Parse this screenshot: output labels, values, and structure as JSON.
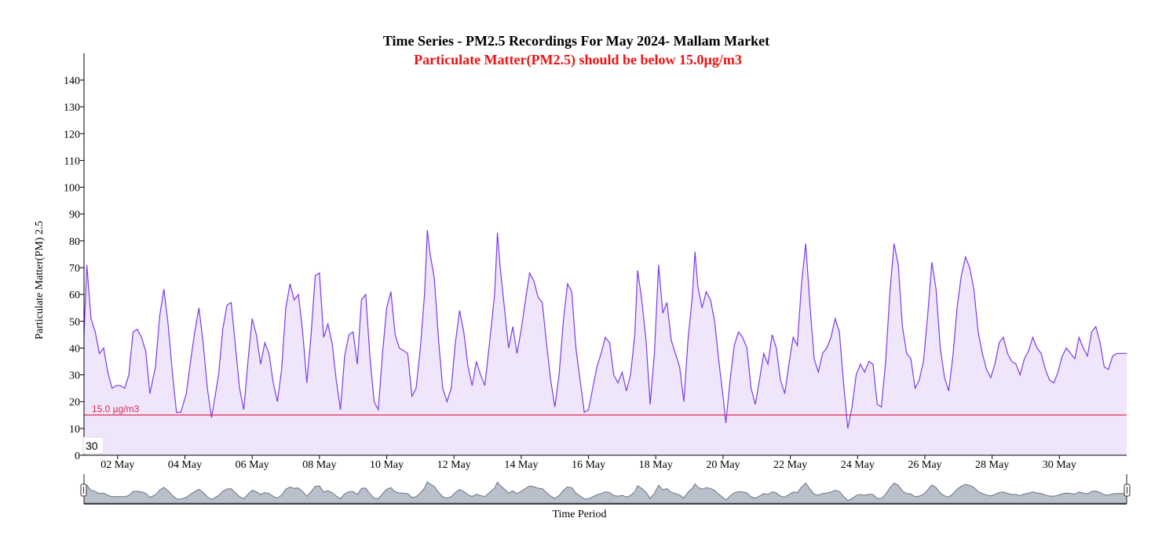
{
  "chart_data": {
    "type": "area",
    "title": "Time Series - PM2.5 Recordings For May 2024- Mallam Market",
    "subtitle": "Particulate Matter(PM2.5) should be below 15.0µg/m3",
    "xlabel": "Time Period",
    "ylabel": "Particulate Matter(PM) 2.5",
    "ylim": [
      0,
      150
    ],
    "xlim": [
      "2024-05-01",
      "2024-06-01"
    ],
    "yticks": [
      "0",
      "10",
      "20",
      "30",
      "40",
      "50",
      "60",
      "70",
      "80",
      "90",
      "100",
      "110",
      "120",
      "130",
      "140"
    ],
    "xticks": [
      {
        "date": "2024-05-02",
        "label": "02 May"
      },
      {
        "date": "2024-05-04",
        "label": "04 May"
      },
      {
        "date": "2024-05-06",
        "label": "06 May"
      },
      {
        "date": "2024-05-08",
        "label": "08 May"
      },
      {
        "date": "2024-05-10",
        "label": "10 May"
      },
      {
        "date": "2024-05-12",
        "label": "12 May"
      },
      {
        "date": "2024-05-14",
        "label": "14 May"
      },
      {
        "date": "2024-05-16",
        "label": "16 May"
      },
      {
        "date": "2024-05-18",
        "label": "18 May"
      },
      {
        "date": "2024-05-20",
        "label": "20 May"
      },
      {
        "date": "2024-05-22",
        "label": "22 May"
      },
      {
        "date": "2024-05-24",
        "label": "24 May"
      },
      {
        "date": "2024-05-26",
        "label": "26 May"
      },
      {
        "date": "2024-05-28",
        "label": "28 May"
      },
      {
        "date": "2024-05-30",
        "label": "30 May"
      }
    ],
    "threshold": {
      "value": 15.0,
      "label": "15.0 µg/m3",
      "color": "#e0284f"
    },
    "series": [
      {
        "color": "#7c3aed",
        "fill": "#efe6fb",
        "points": [
          [
            "2024-05-01 00:00",
            45
          ],
          [
            "2024-05-01 02:00",
            71
          ],
          [
            "2024-05-01 05:00",
            51
          ],
          [
            "2024-05-01 08:00",
            46
          ],
          [
            "2024-05-01 11:00",
            38
          ],
          [
            "2024-05-01 14:00",
            40
          ],
          [
            "2024-05-01 17:00",
            31
          ],
          [
            "2024-05-01 20:00",
            25
          ],
          [
            "2024-05-01 23:00",
            26
          ],
          [
            "2024-05-02 02:00",
            26
          ],
          [
            "2024-05-02 05:00",
            25
          ],
          [
            "2024-05-02 08:00",
            30
          ],
          [
            "2024-05-02 11:00",
            46
          ],
          [
            "2024-05-02 14:00",
            47
          ],
          [
            "2024-05-02 17:00",
            44
          ],
          [
            "2024-05-02 20:00",
            39
          ],
          [
            "2024-05-02 23:00",
            23
          ],
          [
            "2024-05-03 03:00",
            33
          ],
          [
            "2024-05-03 06:00",
            52
          ],
          [
            "2024-05-03 09:00",
            62
          ],
          [
            "2024-05-03 12:00",
            49
          ],
          [
            "2024-05-03 15:00",
            31
          ],
          [
            "2024-05-03 18:00",
            16
          ],
          [
            "2024-05-03 21:00",
            16
          ],
          [
            "2024-05-04 01:00",
            23
          ],
          [
            "2024-05-04 04:00",
            35
          ],
          [
            "2024-05-04 07:00",
            46
          ],
          [
            "2024-05-04 10:00",
            55
          ],
          [
            "2024-05-04 13:00",
            42
          ],
          [
            "2024-05-04 16:00",
            25
          ],
          [
            "2024-05-04 19:00",
            14
          ],
          [
            "2024-05-05 00:00",
            30
          ],
          [
            "2024-05-05 03:00",
            47
          ],
          [
            "2024-05-05 06:00",
            56
          ],
          [
            "2024-05-05 09:00",
            57
          ],
          [
            "2024-05-05 12:00",
            41
          ],
          [
            "2024-05-05 15:00",
            25
          ],
          [
            "2024-05-05 18:00",
            17
          ],
          [
            "2024-05-05 21:00",
            35
          ],
          [
            "2024-05-06 00:00",
            51
          ],
          [
            "2024-05-06 03:00",
            45
          ],
          [
            "2024-05-06 06:00",
            34
          ],
          [
            "2024-05-06 09:00",
            42
          ],
          [
            "2024-05-06 12:00",
            38
          ],
          [
            "2024-05-06 15:00",
            27
          ],
          [
            "2024-05-06 18:00",
            20
          ],
          [
            "2024-05-06 21:00",
            32
          ],
          [
            "2024-05-07 00:00",
            55
          ],
          [
            "2024-05-07 03:00",
            64
          ],
          [
            "2024-05-07 06:00",
            58
          ],
          [
            "2024-05-07 09:00",
            60
          ],
          [
            "2024-05-07 12:00",
            46
          ],
          [
            "2024-05-07 15:00",
            27
          ],
          [
            "2024-05-07 18:00",
            45
          ],
          [
            "2024-05-07 21:00",
            67
          ],
          [
            "2024-05-08 00:00",
            68
          ],
          [
            "2024-05-08 03:00",
            44
          ],
          [
            "2024-05-08 06:00",
            49
          ],
          [
            "2024-05-08 09:00",
            42
          ],
          [
            "2024-05-08 12:00",
            28
          ],
          [
            "2024-05-08 15:00",
            17
          ],
          [
            "2024-05-08 18:00",
            37
          ],
          [
            "2024-05-08 21:00",
            45
          ],
          [
            "2024-05-09 00:00",
            46
          ],
          [
            "2024-05-09 03:00",
            34
          ],
          [
            "2024-05-09 06:00",
            58
          ],
          [
            "2024-05-09 09:00",
            60
          ],
          [
            "2024-05-09 12:00",
            37
          ],
          [
            "2024-05-09 15:00",
            20
          ],
          [
            "2024-05-09 18:00",
            17
          ],
          [
            "2024-05-09 21:00",
            38
          ],
          [
            "2024-05-10 00:00",
            55
          ],
          [
            "2024-05-10 03:00",
            61
          ],
          [
            "2024-05-10 06:00",
            45
          ],
          [
            "2024-05-10 09:00",
            40
          ],
          [
            "2024-05-10 12:00",
            39
          ],
          [
            "2024-05-10 15:00",
            38
          ],
          [
            "2024-05-10 18:00",
            22
          ],
          [
            "2024-05-10 21:00",
            25
          ],
          [
            "2024-05-11 00:00",
            40
          ],
          [
            "2024-05-11 03:00",
            60
          ],
          [
            "2024-05-11 05:00",
            84
          ],
          [
            "2024-05-11 07:00",
            75
          ],
          [
            "2024-05-11 10:00",
            66
          ],
          [
            "2024-05-11 13:00",
            43
          ],
          [
            "2024-05-11 16:00",
            25
          ],
          [
            "2024-05-11 19:00",
            20
          ],
          [
            "2024-05-11 22:00",
            25
          ],
          [
            "2024-05-12 01:00",
            42
          ],
          [
            "2024-05-12 04:00",
            54
          ],
          [
            "2024-05-12 07:00",
            46
          ],
          [
            "2024-05-12 10:00",
            33
          ],
          [
            "2024-05-12 13:00",
            26
          ],
          [
            "2024-05-12 16:00",
            35
          ],
          [
            "2024-05-12 19:00",
            30
          ],
          [
            "2024-05-12 22:00",
            26
          ],
          [
            "2024-05-13 01:00",
            40
          ],
          [
            "2024-05-13 05:00",
            60
          ],
          [
            "2024-05-13 07:00",
            83
          ],
          [
            "2024-05-13 09:00",
            70
          ],
          [
            "2024-05-13 12:00",
            55
          ],
          [
            "2024-05-13 15:00",
            40
          ],
          [
            "2024-05-13 18:00",
            48
          ],
          [
            "2024-05-13 21:00",
            38
          ],
          [
            "2024-05-14 00:00",
            47
          ],
          [
            "2024-05-14 03:00",
            58
          ],
          [
            "2024-05-14 06:00",
            68
          ],
          [
            "2024-05-14 09:00",
            65
          ],
          [
            "2024-05-14 12:00",
            59
          ],
          [
            "2024-05-14 15:00",
            57
          ],
          [
            "2024-05-14 18:00",
            42
          ],
          [
            "2024-05-14 21:00",
            28
          ],
          [
            "2024-05-15 00:00",
            18
          ],
          [
            "2024-05-15 03:00",
            30
          ],
          [
            "2024-05-15 06:00",
            50
          ],
          [
            "2024-05-15 09:00",
            64
          ],
          [
            "2024-05-15 12:00",
            61
          ],
          [
            "2024-05-15 15:00",
            40
          ],
          [
            "2024-05-15 18:00",
            28
          ],
          [
            "2024-05-15 21:00",
            16
          ],
          [
            "2024-05-16 00:00",
            17
          ],
          [
            "2024-05-16 03:00",
            25
          ],
          [
            "2024-05-16 06:00",
            33
          ],
          [
            "2024-05-16 09:00",
            38
          ],
          [
            "2024-05-16 12:00",
            44
          ],
          [
            "2024-05-16 15:00",
            42
          ],
          [
            "2024-05-16 18:00",
            30
          ],
          [
            "2024-05-16 21:00",
            27
          ],
          [
            "2024-05-17 00:00",
            31
          ],
          [
            "2024-05-17 03:00",
            24
          ],
          [
            "2024-05-17 06:00",
            30
          ],
          [
            "2024-05-17 09:00",
            45
          ],
          [
            "2024-05-17 11:00",
            69
          ],
          [
            "2024-05-17 14:00",
            58
          ],
          [
            "2024-05-17 17:00",
            43
          ],
          [
            "2024-05-17 20:00",
            19
          ],
          [
            "2024-05-17 23:00",
            38
          ],
          [
            "2024-05-18 02:00",
            71
          ],
          [
            "2024-05-18 05:00",
            53
          ],
          [
            "2024-05-18 08:00",
            57
          ],
          [
            "2024-05-18 11:00",
            43
          ],
          [
            "2024-05-18 14:00",
            38
          ],
          [
            "2024-05-18 17:00",
            33
          ],
          [
            "2024-05-18 20:00",
            20
          ],
          [
            "2024-05-18 23:00",
            43
          ],
          [
            "2024-05-19 02:00",
            59
          ],
          [
            "2024-05-19 04:00",
            76
          ],
          [
            "2024-05-19 06:00",
            63
          ],
          [
            "2024-05-19 09:00",
            55
          ],
          [
            "2024-05-19 12:00",
            61
          ],
          [
            "2024-05-19 15:00",
            58
          ],
          [
            "2024-05-19 18:00",
            50
          ],
          [
            "2024-05-19 21:00",
            35
          ],
          [
            "2024-05-20 00:00",
            22
          ],
          [
            "2024-05-20 02:00",
            12
          ],
          [
            "2024-05-20 05:00",
            28
          ],
          [
            "2024-05-20 08:00",
            41
          ],
          [
            "2024-05-20 11:00",
            46
          ],
          [
            "2024-05-20 14:00",
            44
          ],
          [
            "2024-05-20 17:00",
            40
          ],
          [
            "2024-05-20 20:00",
            25
          ],
          [
            "2024-05-20 23:00",
            19
          ],
          [
            "2024-05-21 02:00",
            28
          ],
          [
            "2024-05-21 05:00",
            38
          ],
          [
            "2024-05-21 08:00",
            34
          ],
          [
            "2024-05-21 11:00",
            45
          ],
          [
            "2024-05-21 14:00",
            40
          ],
          [
            "2024-05-21 17:00",
            28
          ],
          [
            "2024-05-21 20:00",
            23
          ],
          [
            "2024-05-21 23:00",
            34
          ],
          [
            "2024-05-22 02:00",
            44
          ],
          [
            "2024-05-22 05:00",
            41
          ],
          [
            "2024-05-22 08:00",
            64
          ],
          [
            "2024-05-22 11:00",
            79
          ],
          [
            "2024-05-22 14:00",
            56
          ],
          [
            "2024-05-22 17:00",
            36
          ],
          [
            "2024-05-22 20:00",
            31
          ],
          [
            "2024-05-22 23:00",
            38
          ],
          [
            "2024-05-23 02:00",
            40
          ],
          [
            "2024-05-23 05:00",
            44
          ],
          [
            "2024-05-23 08:00",
            51
          ],
          [
            "2024-05-23 11:00",
            46
          ],
          [
            "2024-05-23 14:00",
            27
          ],
          [
            "2024-05-23 17:00",
            10
          ],
          [
            "2024-05-23 20:00",
            18
          ],
          [
            "2024-05-23 23:00",
            30
          ],
          [
            "2024-05-24 02:00",
            34
          ],
          [
            "2024-05-24 05:00",
            31
          ],
          [
            "2024-05-24 08:00",
            35
          ],
          [
            "2024-05-24 11:00",
            34
          ],
          [
            "2024-05-24 14:00",
            19
          ],
          [
            "2024-05-24 17:00",
            18
          ],
          [
            "2024-05-24 20:00",
            35
          ],
          [
            "2024-05-24 23:00",
            60
          ],
          [
            "2024-05-25 02:00",
            79
          ],
          [
            "2024-05-25 05:00",
            71
          ],
          [
            "2024-05-25 08:00",
            48
          ],
          [
            "2024-05-25 11:00",
            38
          ],
          [
            "2024-05-25 14:00",
            36
          ],
          [
            "2024-05-25 17:00",
            25
          ],
          [
            "2024-05-25 20:00",
            28
          ],
          [
            "2024-05-25 23:00",
            35
          ],
          [
            "2024-05-26 02:00",
            52
          ],
          [
            "2024-05-26 05:00",
            72
          ],
          [
            "2024-05-26 08:00",
            62
          ],
          [
            "2024-05-26 11:00",
            40
          ],
          [
            "2024-05-26 14:00",
            29
          ],
          [
            "2024-05-26 17:00",
            24
          ],
          [
            "2024-05-26 20:00",
            37
          ],
          [
            "2024-05-26 23:00",
            55
          ],
          [
            "2024-05-27 02:00",
            67
          ],
          [
            "2024-05-27 05:00",
            74
          ],
          [
            "2024-05-27 08:00",
            70
          ],
          [
            "2024-05-27 11:00",
            62
          ],
          [
            "2024-05-27 14:00",
            46
          ],
          [
            "2024-05-27 17:00",
            38
          ],
          [
            "2024-05-27 20:00",
            32
          ],
          [
            "2024-05-27 23:00",
            29
          ],
          [
            "2024-05-28 02:00",
            34
          ],
          [
            "2024-05-28 05:00",
            42
          ],
          [
            "2024-05-28 08:00",
            44
          ],
          [
            "2024-05-28 11:00",
            38
          ],
          [
            "2024-05-28 14:00",
            35
          ],
          [
            "2024-05-28 17:00",
            34
          ],
          [
            "2024-05-28 20:00",
            30
          ],
          [
            "2024-05-28 23:00",
            36
          ],
          [
            "2024-05-29 02:00",
            39
          ],
          [
            "2024-05-29 05:00",
            44
          ],
          [
            "2024-05-29 08:00",
            40
          ],
          [
            "2024-05-29 11:00",
            38
          ],
          [
            "2024-05-29 14:00",
            32
          ],
          [
            "2024-05-29 17:00",
            28
          ],
          [
            "2024-05-29 20:00",
            27
          ],
          [
            "2024-05-29 23:00",
            31
          ],
          [
            "2024-05-30 02:00",
            37
          ],
          [
            "2024-05-30 05:00",
            40
          ],
          [
            "2024-05-30 08:00",
            38
          ],
          [
            "2024-05-30 11:00",
            36
          ],
          [
            "2024-05-30 14:00",
            44
          ],
          [
            "2024-05-30 17:00",
            40
          ],
          [
            "2024-05-30 20:00",
            37
          ],
          [
            "2024-05-30 23:00",
            46
          ],
          [
            "2024-05-31 02:00",
            48
          ],
          [
            "2024-05-31 05:00",
            42
          ],
          [
            "2024-05-31 08:00",
            33
          ],
          [
            "2024-05-31 11:00",
            32
          ],
          [
            "2024-05-31 14:00",
            37
          ],
          [
            "2024-05-31 17:00",
            38
          ],
          [
            "2024-05-31 23:59",
            38
          ]
        ]
      }
    ]
  },
  "tooltip": {
    "value": "30"
  },
  "navigator": {
    "fill": "#b9bfcb",
    "stroke": "#6b7485"
  }
}
